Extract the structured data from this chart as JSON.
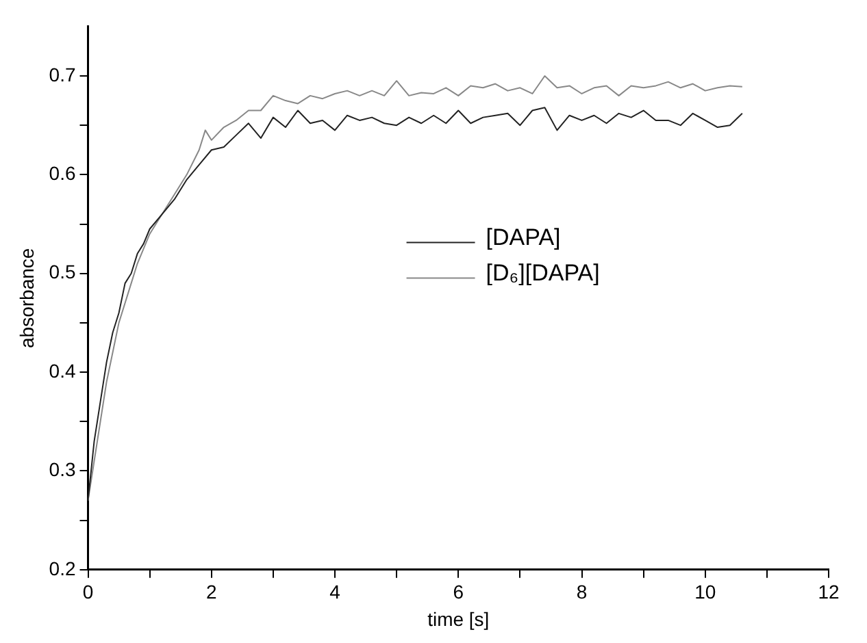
{
  "chart_data": {
    "type": "line",
    "xlabel": "time [s]",
    "ylabel": "absorbance",
    "xlim": [
      0,
      12
    ],
    "ylim": [
      0.2,
      0.75
    ],
    "xticks": [
      0,
      {
        "value": 1,
        "label": null
      },
      2,
      {
        "value": 3,
        "label": null
      },
      4,
      {
        "value": 5,
        "label": null
      },
      6,
      {
        "value": 7,
        "label": null
      },
      8,
      {
        "value": 9,
        "label": null
      },
      10,
      {
        "value": 11,
        "label": null
      },
      12
    ],
    "yticks": [
      0.2,
      {
        "value": 0.25,
        "label": null
      },
      0.3,
      {
        "value": 0.35,
        "label": null
      },
      0.4,
      {
        "value": 0.45,
        "label": null
      },
      0.5,
      {
        "value": 0.55,
        "label": null
      },
      0.6,
      {
        "value": 0.65,
        "label": null
      },
      0.7
    ],
    "grid": false,
    "legend": "right",
    "marker": "none",
    "line_style": "solid",
    "series": [
      {
        "name": "[DAPA]",
        "color": "#222222",
        "x": [
          0,
          0.1,
          0.2,
          0.3,
          0.4,
          0.5,
          0.6,
          0.7,
          0.8,
          0.9,
          1.0,
          1.2,
          1.4,
          1.6,
          1.8,
          2.0,
          2.2,
          2.4,
          2.6,
          2.8,
          3.0,
          3.2,
          3.4,
          3.6,
          3.8,
          4.0,
          4.2,
          4.4,
          4.6,
          4.8,
          5.0,
          5.2,
          5.4,
          5.6,
          5.8,
          6.0,
          6.2,
          6.4,
          6.6,
          6.8,
          7.0,
          7.2,
          7.4,
          7.6,
          7.8,
          8.0,
          8.2,
          8.4,
          8.6,
          8.8,
          9.0,
          9.2,
          9.4,
          9.6,
          9.8,
          10.0,
          10.2,
          10.4,
          10.6
        ],
        "values": [
          0.27,
          0.33,
          0.37,
          0.41,
          0.44,
          0.46,
          0.49,
          0.5,
          0.52,
          0.53,
          0.545,
          0.56,
          0.575,
          0.595,
          0.61,
          0.625,
          0.628,
          0.64,
          0.652,
          0.637,
          0.658,
          0.648,
          0.665,
          0.652,
          0.655,
          0.645,
          0.66,
          0.655,
          0.658,
          0.652,
          0.65,
          0.658,
          0.652,
          0.66,
          0.652,
          0.665,
          0.652,
          0.658,
          0.66,
          0.662,
          0.65,
          0.665,
          0.668,
          0.645,
          0.66,
          0.655,
          0.66,
          0.652,
          0.662,
          0.658,
          0.665,
          0.655,
          0.655,
          0.65,
          0.662,
          0.655,
          0.648,
          0.65,
          0.662
        ]
      },
      {
        "name": "[D₆][DAPA]",
        "color": "#888888",
        "x": [
          0,
          0.1,
          0.2,
          0.3,
          0.4,
          0.5,
          0.6,
          0.7,
          0.8,
          0.9,
          1.0,
          1.2,
          1.4,
          1.6,
          1.8,
          1.9,
          2.0,
          2.2,
          2.4,
          2.6,
          2.8,
          3.0,
          3.2,
          3.4,
          3.6,
          3.8,
          4.0,
          4.2,
          4.4,
          4.6,
          4.8,
          5.0,
          5.2,
          5.4,
          5.6,
          5.8,
          6.0,
          6.2,
          6.4,
          6.6,
          6.8,
          7.0,
          7.2,
          7.4,
          7.6,
          7.8,
          8.0,
          8.2,
          8.4,
          8.6,
          8.8,
          9.0,
          9.2,
          9.4,
          9.6,
          9.8,
          10.0,
          10.2,
          10.4,
          10.6
        ],
        "values": [
          0.27,
          0.31,
          0.35,
          0.39,
          0.42,
          0.45,
          0.47,
          0.49,
          0.51,
          0.525,
          0.54,
          0.56,
          0.58,
          0.6,
          0.625,
          0.645,
          0.635,
          0.648,
          0.655,
          0.665,
          0.665,
          0.68,
          0.675,
          0.672,
          0.68,
          0.677,
          0.682,
          0.685,
          0.68,
          0.685,
          0.68,
          0.695,
          0.68,
          0.683,
          0.682,
          0.688,
          0.68,
          0.69,
          0.688,
          0.692,
          0.685,
          0.688,
          0.682,
          0.7,
          0.688,
          0.69,
          0.682,
          0.688,
          0.69,
          0.68,
          0.69,
          0.688,
          0.69,
          0.694,
          0.688,
          0.692,
          0.685,
          0.688,
          0.69,
          0.689
        ]
      }
    ]
  }
}
